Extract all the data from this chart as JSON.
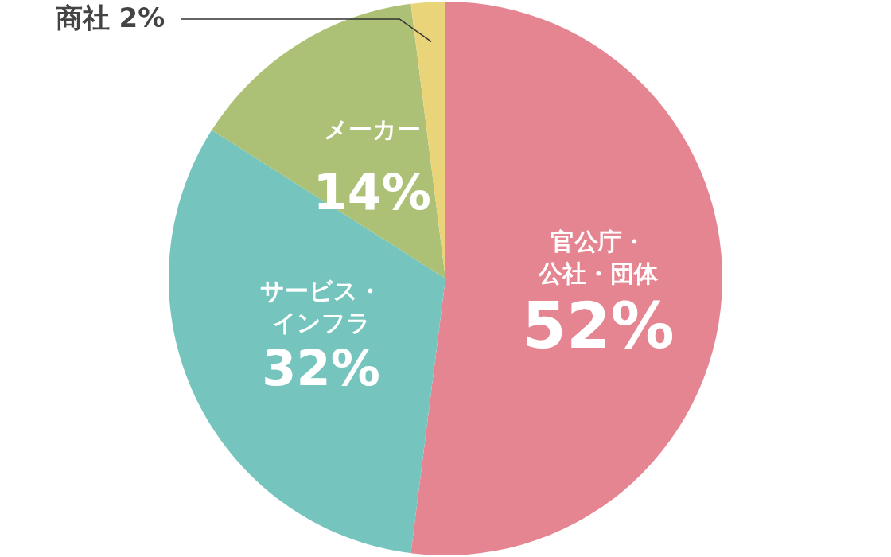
{
  "chart_data": {
    "type": "pie",
    "categories": [
      "官公庁・公社・団体",
      "サービス・インフラ",
      "メーカー",
      "商社"
    ],
    "values": [
      52,
      32,
      14,
      2
    ],
    "colors": [
      "#e68592",
      "#75c4be",
      "#adc176",
      "#e9d479"
    ],
    "value_labels": [
      "52%",
      "32%",
      "14%",
      "2%"
    ]
  }
}
